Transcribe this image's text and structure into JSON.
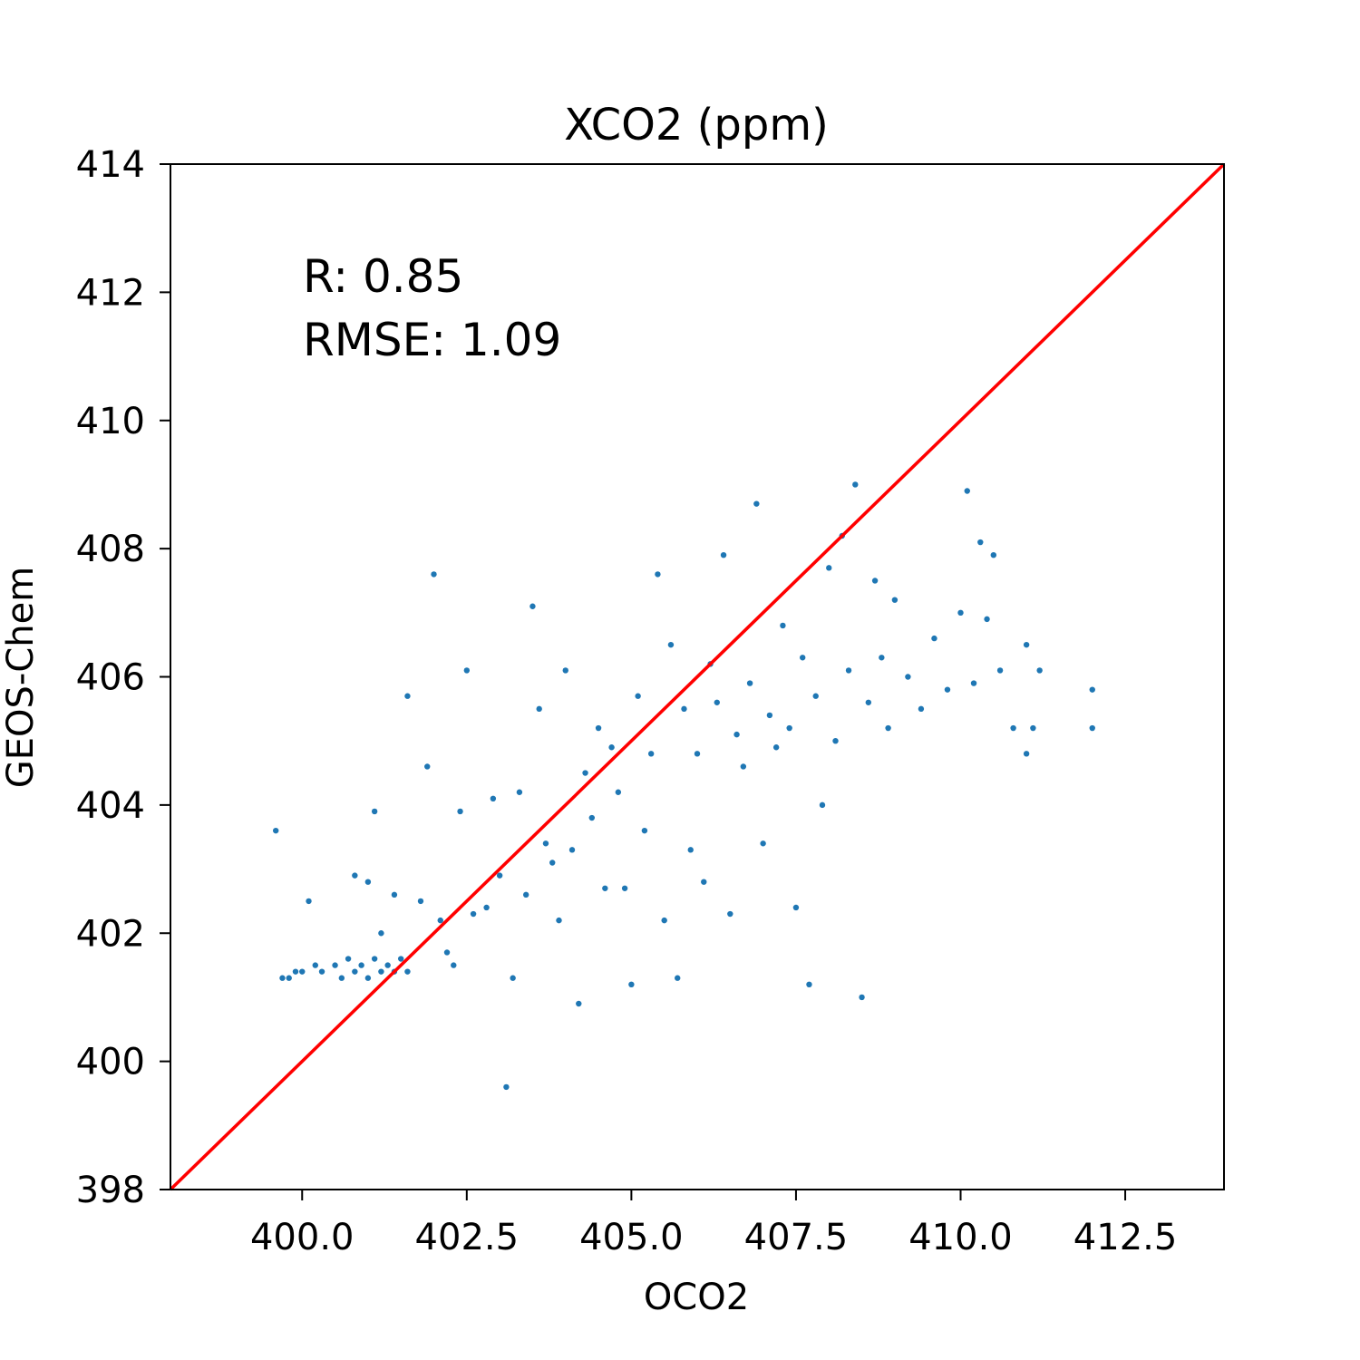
{
  "chart_data": {
    "type": "scatter",
    "title": "XCO2 (ppm)",
    "xlabel": "OCO2",
    "ylabel": "GEOS-Chem",
    "xlim": [
      398.0,
      414.0
    ],
    "ylim": [
      398,
      414
    ],
    "xticks": [
      400.0,
      402.5,
      405.0,
      407.5,
      410.0,
      412.5
    ],
    "xtick_labels": [
      "400.0",
      "402.5",
      "405.0",
      "407.5",
      "410.0",
      "412.5"
    ],
    "yticks": [
      398,
      400,
      402,
      404,
      406,
      408,
      410,
      412,
      414
    ],
    "ytick_labels": [
      "398",
      "400",
      "402",
      "404",
      "406",
      "408",
      "410",
      "412",
      "414"
    ],
    "grid": false,
    "annotations": [
      "R: 0.85",
      "RMSE: 1.09"
    ],
    "series": [
      {
        "marker_color": "#1f77b4",
        "points": [
          [
            399.6,
            403.6
          ],
          [
            399.7,
            401.3
          ],
          [
            399.8,
            401.3
          ],
          [
            399.9,
            401.4
          ],
          [
            400.0,
            401.4
          ],
          [
            400.1,
            402.5
          ],
          [
            400.2,
            401.5
          ],
          [
            400.3,
            401.4
          ],
          [
            400.5,
            401.5
          ],
          [
            400.6,
            401.3
          ],
          [
            400.7,
            401.6
          ],
          [
            400.8,
            401.4
          ],
          [
            400.9,
            401.5
          ],
          [
            401.0,
            401.3
          ],
          [
            401.1,
            401.6
          ],
          [
            401.2,
            401.4
          ],
          [
            401.3,
            401.5
          ],
          [
            401.4,
            401.4
          ],
          [
            401.5,
            401.6
          ],
          [
            401.6,
            401.4
          ],
          [
            400.8,
            402.9
          ],
          [
            401.0,
            402.8
          ],
          [
            401.1,
            403.9
          ],
          [
            401.2,
            402.0
          ],
          [
            401.4,
            402.6
          ],
          [
            401.6,
            405.7
          ],
          [
            401.8,
            402.5
          ],
          [
            401.9,
            404.6
          ],
          [
            402.0,
            407.6
          ],
          [
            402.1,
            402.2
          ],
          [
            402.2,
            401.7
          ],
          [
            402.3,
            401.5
          ],
          [
            402.4,
            403.9
          ],
          [
            402.5,
            406.1
          ],
          [
            402.6,
            402.3
          ],
          [
            402.8,
            402.4
          ],
          [
            402.9,
            404.1
          ],
          [
            403.0,
            402.9
          ],
          [
            403.1,
            399.6
          ],
          [
            403.2,
            401.3
          ],
          [
            403.3,
            404.2
          ],
          [
            403.4,
            402.6
          ],
          [
            403.5,
            407.1
          ],
          [
            403.6,
            405.5
          ],
          [
            403.7,
            403.4
          ],
          [
            403.8,
            403.1
          ],
          [
            403.9,
            402.2
          ],
          [
            404.0,
            406.1
          ],
          [
            404.1,
            403.3
          ],
          [
            404.2,
            400.9
          ],
          [
            404.3,
            404.5
          ],
          [
            404.4,
            403.8
          ],
          [
            404.5,
            405.2
          ],
          [
            404.6,
            402.7
          ],
          [
            404.7,
            404.9
          ],
          [
            404.8,
            404.2
          ],
          [
            404.9,
            402.7
          ],
          [
            405.0,
            401.2
          ],
          [
            405.1,
            405.7
          ],
          [
            405.2,
            403.6
          ],
          [
            405.3,
            404.8
          ],
          [
            405.4,
            407.6
          ],
          [
            405.5,
            402.2
          ],
          [
            405.6,
            406.5
          ],
          [
            405.7,
            401.3
          ],
          [
            405.8,
            405.5
          ],
          [
            405.9,
            403.3
          ],
          [
            406.0,
            404.8
          ],
          [
            406.1,
            402.8
          ],
          [
            406.2,
            406.2
          ],
          [
            406.3,
            405.6
          ],
          [
            406.4,
            407.9
          ],
          [
            406.5,
            402.3
          ],
          [
            406.6,
            405.1
          ],
          [
            406.7,
            404.6
          ],
          [
            406.8,
            405.9
          ],
          [
            406.9,
            408.7
          ],
          [
            407.0,
            403.4
          ],
          [
            407.1,
            405.4
          ],
          [
            407.2,
            404.9
          ],
          [
            407.3,
            406.8
          ],
          [
            407.4,
            405.2
          ],
          [
            407.5,
            402.4
          ],
          [
            407.6,
            406.3
          ],
          [
            407.7,
            401.2
          ],
          [
            407.8,
            405.7
          ],
          [
            407.9,
            404.0
          ],
          [
            408.0,
            407.7
          ],
          [
            408.1,
            405.0
          ],
          [
            408.2,
            408.2
          ],
          [
            408.3,
            406.1
          ],
          [
            408.4,
            409.0
          ],
          [
            408.5,
            401.0
          ],
          [
            408.6,
            405.6
          ],
          [
            408.7,
            407.5
          ],
          [
            408.8,
            406.3
          ],
          [
            408.9,
            405.2
          ],
          [
            409.0,
            407.2
          ],
          [
            409.2,
            406.0
          ],
          [
            409.4,
            405.5
          ],
          [
            409.6,
            406.6
          ],
          [
            409.8,
            405.8
          ],
          [
            410.0,
            407.0
          ],
          [
            410.1,
            408.9
          ],
          [
            410.2,
            405.9
          ],
          [
            410.3,
            408.1
          ],
          [
            410.4,
            406.9
          ],
          [
            410.5,
            407.9
          ],
          [
            410.6,
            406.1
          ],
          [
            410.8,
            405.2
          ],
          [
            411.0,
            406.5
          ],
          [
            411.0,
            404.8
          ],
          [
            411.1,
            405.2
          ],
          [
            411.2,
            406.1
          ],
          [
            412.0,
            405.2
          ],
          [
            412.0,
            405.8
          ]
        ]
      }
    ],
    "reference_line": {
      "color": "#ff0000",
      "from": [
        398.0,
        398.0
      ],
      "to": [
        414.0,
        414.0
      ]
    }
  }
}
